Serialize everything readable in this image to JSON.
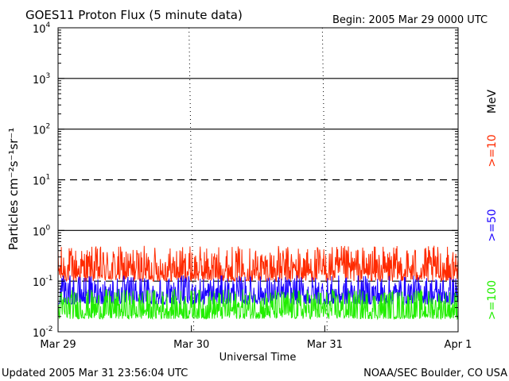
{
  "header": {
    "title": "GOES11 Proton Flux (5 minute data)",
    "begin": "Begin: 2005 Mar 29 0000 UTC"
  },
  "footer": {
    "updated": "Updated 2005 Mar 31 23:56:04 UTC",
    "source": "NOAA/SEC Boulder, CO USA"
  },
  "colors": {
    "series_10": "#ff2a00",
    "series_50": "#1a00ff",
    "series_100": "#22ee00",
    "axis": "#000000"
  },
  "chart_data": {
    "type": "line",
    "ylabel": "Particles cm⁻²s⁻¹sr⁻¹",
    "xlabel": "Universal Time",
    "yscale": "log",
    "ylim": [
      0.01,
      10000
    ],
    "xlim_days": [
      0,
      3
    ],
    "ytick_labels": [
      {
        "base": "10",
        "exp": "-2"
      },
      {
        "base": "10",
        "exp": "-1"
      },
      {
        "base": "10",
        "exp": "0"
      },
      {
        "base": "10",
        "exp": "1"
      },
      {
        "base": "10",
        "exp": "2"
      },
      {
        "base": "10",
        "exp": "3"
      },
      {
        "base": "10",
        "exp": "4"
      }
    ],
    "xtick_labels": [
      "Mar 29",
      "Mar 30",
      "Mar 31",
      "Apr 1"
    ],
    "grid": {
      "solid_y": [
        1,
        100,
        1000
      ],
      "dashed_y": [
        0.1,
        10
      ]
    },
    "unit_label": "MeV",
    "series": [
      {
        "name": ">=10",
        "level_range": [
          0.1,
          0.5
        ]
      },
      {
        "name": ">=50",
        "level_range": [
          0.035,
          0.13
        ]
      },
      {
        "name": ">=100",
        "level_range": [
          0.018,
          0.07
        ]
      }
    ]
  }
}
